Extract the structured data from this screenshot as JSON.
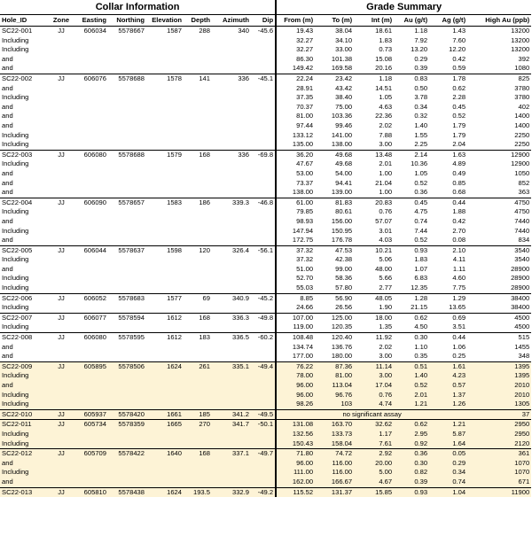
{
  "collar_title": "Collar Information",
  "grade_title": "Grade Summary",
  "columns": [
    "Hole_ID",
    "Zone",
    "Easting",
    "Northing",
    "Elevation",
    "Depth",
    "Azimuth",
    "Dip",
    "From (m)",
    "To (m)",
    "Int (m)",
    "Au (g/t)",
    "Ag (g/t)",
    "High Au (ppb)"
  ],
  "rows": [
    {
      "collar": [
        "SC22-001",
        "JJ",
        "606034",
        "5578667",
        "1587",
        "288",
        "340",
        "-45.6"
      ],
      "grade": [
        "19.43",
        "38.04",
        "18.61",
        "1.18",
        "1.43",
        "13200"
      ]
    },
    {
      "label": "Including",
      "grade": [
        "32.27",
        "34.10",
        "1.83",
        "7.92",
        "7.60",
        "13200"
      ]
    },
    {
      "label": "Including",
      "grade": [
        "32.27",
        "33.00",
        "0.73",
        "13.20",
        "12.20",
        "13200"
      ]
    },
    {
      "label": "and",
      "grade": [
        "86.30",
        "101.38",
        "15.08",
        "0.29",
        "0.42",
        "392"
      ]
    },
    {
      "label": "and",
      "grade": [
        "149.42",
        "169.58",
        "20.16",
        "0.39",
        "0.59",
        "1080"
      ]
    },
    {
      "collar": [
        "SC22-002",
        "JJ",
        "606076",
        "5578688",
        "1578",
        "141",
        "336",
        "-45.1"
      ],
      "grade": [
        "22.24",
        "23.42",
        "1.18",
        "0.83",
        "1.78",
        "825"
      ]
    },
    {
      "label": "and",
      "grade": [
        "28.91",
        "43.42",
        "14.51",
        "0.50",
        "0.62",
        "3780"
      ]
    },
    {
      "label": "Including",
      "grade": [
        "37.35",
        "38.40",
        "1.05",
        "3.78",
        "2.28",
        "3780"
      ]
    },
    {
      "label": "and",
      "grade": [
        "70.37",
        "75.00",
        "4.63",
        "0.34",
        "0.45",
        "402"
      ]
    },
    {
      "label": "and",
      "grade": [
        "81.00",
        "103.36",
        "22.36",
        "0.32",
        "0.52",
        "1400"
      ]
    },
    {
      "label": "and",
      "grade": [
        "97.44",
        "99.46",
        "2.02",
        "1.40",
        "1.79",
        "1400"
      ]
    },
    {
      "label": "Including",
      "grade": [
        "133.12",
        "141.00",
        "7.88",
        "1.55",
        "1.79",
        "2250"
      ]
    },
    {
      "label": "Including",
      "grade": [
        "135.00",
        "138.00",
        "3.00",
        "2.25",
        "2.04",
        "2250"
      ]
    },
    {
      "collar": [
        "SC22-003",
        "JJ",
        "606080",
        "5578688",
        "1579",
        "168",
        "336",
        "-69.8"
      ],
      "grade": [
        "36.20",
        "49.68",
        "13.48",
        "2.14",
        "1.63",
        "12900"
      ]
    },
    {
      "label": "Including",
      "grade": [
        "47.67",
        "49.68",
        "2.01",
        "10.36",
        "4.89",
        "12900"
      ]
    },
    {
      "label": "and",
      "grade": [
        "53.00",
        "54.00",
        "1.00",
        "1.05",
        "0.49",
        "1050"
      ]
    },
    {
      "label": "and",
      "grade": [
        "73.37",
        "94.41",
        "21.04",
        "0.52",
        "0.85",
        "852"
      ]
    },
    {
      "label": "and",
      "grade": [
        "138.00",
        "139.00",
        "1.00",
        "0.36",
        "0.68",
        "363"
      ]
    },
    {
      "collar": [
        "SC22-004",
        "JJ",
        "606090",
        "5578657",
        "1583",
        "186",
        "339.3",
        "-46.8"
      ],
      "grade": [
        "61.00",
        "81.83",
        "20.83",
        "0.45",
        "0.44",
        "4750"
      ]
    },
    {
      "label": "Including",
      "grade": [
        "79.85",
        "80.61",
        "0.76",
        "4.75",
        "1.88",
        "4750"
      ]
    },
    {
      "label": "and",
      "grade": [
        "98.93",
        "156.00",
        "57.07",
        "0.74",
        "0.42",
        "7440"
      ]
    },
    {
      "label": "Including",
      "grade": [
        "147.94",
        "150.95",
        "3.01",
        "7.44",
        "2.70",
        "7440"
      ]
    },
    {
      "label": "and",
      "grade": [
        "172.75",
        "176.78",
        "4.03",
        "0.52",
        "0.08",
        "834"
      ]
    },
    {
      "collar": [
        "SC22-005",
        "JJ",
        "606044",
        "5578637",
        "1598",
        "120",
        "326.4",
        "-56.1"
      ],
      "grade": [
        "37.32",
        "47.53",
        "10.21",
        "0.93",
        "2.10",
        "3540"
      ]
    },
    {
      "label": "Including",
      "grade": [
        "37.32",
        "42.38",
        "5.06",
        "1.83",
        "4.11",
        "3540"
      ]
    },
    {
      "label": "and",
      "grade": [
        "51.00",
        "99.00",
        "48.00",
        "1.07",
        "1.11",
        "28900"
      ]
    },
    {
      "label": "Including",
      "grade": [
        "52.70",
        "58.36",
        "5.66",
        "6.83",
        "4.60",
        "28900"
      ]
    },
    {
      "label": "Including",
      "grade": [
        "55.03",
        "57.80",
        "2.77",
        "12.35",
        "7.75",
        "28900"
      ]
    },
    {
      "collar": [
        "SC22-006",
        "JJ",
        "606052",
        "5578683",
        "1577",
        "69",
        "340.9",
        "-45.2"
      ],
      "grade": [
        "8.85",
        "56.90",
        "48.05",
        "1.28",
        "1.29",
        "38400"
      ]
    },
    {
      "label": "Including",
      "grade": [
        "24.66",
        "26.56",
        "1.90",
        "21.15",
        "13.65",
        "38400"
      ]
    },
    {
      "collar": [
        "SC22-007",
        "JJ",
        "606077",
        "5578594",
        "1612",
        "168",
        "336.3",
        "-49.8"
      ],
      "grade": [
        "107.00",
        "125.00",
        "18.00",
        "0.62",
        "0.69",
        "4500"
      ]
    },
    {
      "label": "Including",
      "grade": [
        "119.00",
        "120.35",
        "1.35",
        "4.50",
        "3.51",
        "4500"
      ]
    },
    {
      "collar": [
        "SC22-008",
        "JJ",
        "606080",
        "5578595",
        "1612",
        "183",
        "336.5",
        "-60.2"
      ],
      "grade": [
        "108.48",
        "120.40",
        "11.92",
        "0.30",
        "0.44",
        "515"
      ]
    },
    {
      "label": "and",
      "grade": [
        "134.74",
        "136.76",
        "2.02",
        "1.10",
        "1.06",
        "1455"
      ]
    },
    {
      "label": "and",
      "grade": [
        "177.00",
        "180.00",
        "3.00",
        "0.35",
        "0.25",
        "348"
      ]
    },
    {
      "collar": [
        "SC22-009",
        "JJ",
        "605895",
        "5578506",
        "1624",
        "261",
        "335.1",
        "-49.4"
      ],
      "grade": [
        "76.22",
        "87.36",
        "11.14",
        "0.51",
        "1.61",
        "1395"
      ]
    },
    {
      "label": "Including",
      "grade": [
        "78.00",
        "81.00",
        "3.00",
        "1.40",
        "4.23",
        "1395"
      ]
    },
    {
      "label": "and",
      "grade": [
        "96.00",
        "113.04",
        "17.04",
        "0.52",
        "0.57",
        "2010"
      ]
    },
    {
      "label": "Including",
      "grade": [
        "96.00",
        "96.76",
        "0.76",
        "2.01",
        "1.37",
        "2010"
      ]
    },
    {
      "label": "Including",
      "grade": [
        "98.26",
        "103",
        "4.74",
        "1.21",
        "1.26",
        "1305"
      ]
    },
    {
      "collar": [
        "SC22-010",
        "JJ",
        "605937",
        "5578420",
        "1661",
        "185",
        "341.2",
        "-49.5"
      ],
      "note": "no significant assay",
      "high_au": "37"
    },
    {
      "collar": [
        "SC22-011",
        "JJ",
        "605734",
        "5578359",
        "1665",
        "270",
        "341.7",
        "-50.1"
      ],
      "grade": [
        "131.08",
        "163.70",
        "32.62",
        "0.62",
        "1.21",
        "2950"
      ]
    },
    {
      "label": "Including",
      "grade": [
        "132.56",
        "133.73",
        "1.17",
        "2.95",
        "5.87",
        "2950"
      ]
    },
    {
      "label": "Including",
      "grade": [
        "150.43",
        "158.04",
        "7.61",
        "0.92",
        "1.64",
        "2120"
      ]
    },
    {
      "collar": [
        "SC22-012",
        "JJ",
        "605709",
        "5578422",
        "1640",
        "168",
        "337.1",
        "-49.7"
      ],
      "grade": [
        "71.80",
        "74.72",
        "2.92",
        "0.36",
        "0.05",
        "361"
      ]
    },
    {
      "label": "and",
      "grade": [
        "96.00",
        "116.00",
        "20.00",
        "0.30",
        "0.29",
        "1070"
      ]
    },
    {
      "label": "Including",
      "grade": [
        "111.00",
        "116.00",
        "5.00",
        "0.82",
        "0.34",
        "1070"
      ]
    },
    {
      "label": "and",
      "grade": [
        "162.00",
        "166.67",
        "4.67",
        "0.39",
        "0.74",
        "671"
      ]
    },
    {
      "collar": [
        "SC22-013",
        "JJ",
        "605810",
        "5578438",
        "1624",
        "193.5",
        "332.9",
        "-49.2"
      ],
      "grade": [
        "115.52",
        "131.37",
        "15.85",
        "0.93",
        "1.04",
        "11900"
      ]
    }
  ]
}
